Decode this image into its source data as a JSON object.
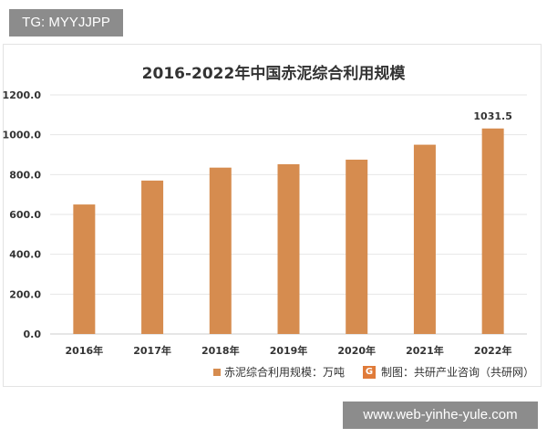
{
  "badge": {
    "text": "TG: MYYJJPP"
  },
  "watermark": {
    "text": "www.web-yinhe-yule.com"
  },
  "source": {
    "logo": "G",
    "text": "制图：共研产业咨询（共研网）"
  },
  "legend": {
    "text": "赤泥综合利用规模：万吨"
  },
  "colors": {
    "bar": "#d68c4f",
    "grid": "#e6e6e6",
    "axis": "#cccccc",
    "text": "#333333"
  },
  "chart_data": {
    "type": "bar",
    "title": "2016-2022年中国赤泥综合利用规模",
    "categories": [
      "2016年",
      "2017年",
      "2018年",
      "2019年",
      "2020年",
      "2021年",
      "2022年"
    ],
    "series": [
      {
        "name": "赤泥综合利用规模：万吨",
        "values": [
          650,
          770,
          835,
          852,
          875,
          950,
          1031.5
        ]
      }
    ],
    "data_labels": {
      "2022年": "1031.5"
    },
    "yticks": [
      "0.0",
      "200.0",
      "400.0",
      "600.0",
      "800.0",
      "1000.0",
      "1200.0"
    ],
    "ylim": [
      0,
      1200
    ],
    "grid": true,
    "legend_position": "bottom"
  }
}
